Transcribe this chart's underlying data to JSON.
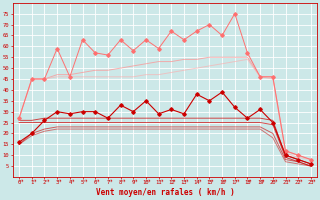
{
  "x": [
    0,
    1,
    2,
    3,
    4,
    5,
    6,
    7,
    8,
    9,
    10,
    11,
    12,
    13,
    14,
    15,
    16,
    17,
    18,
    19,
    20,
    21,
    22,
    23
  ],
  "series": [
    {
      "name": "rafales_max",
      "color": "#ff7070",
      "linewidth": 0.7,
      "marker": "D",
      "markersize": 1.8,
      "alpha": 1.0,
      "values": [
        27,
        45,
        45,
        59,
        46,
        63,
        57,
        56,
        63,
        58,
        63,
        59,
        67,
        63,
        67,
        70,
        65,
        75,
        57,
        46,
        46,
        12,
        10,
        8
      ]
    },
    {
      "name": "rafales_trend1",
      "color": "#ff9090",
      "linewidth": 0.7,
      "marker": null,
      "alpha": 0.7,
      "values": [
        27,
        45,
        45,
        47,
        47,
        48,
        49,
        49,
        50,
        51,
        52,
        53,
        53,
        54,
        54,
        55,
        55,
        55,
        55,
        46,
        46,
        12,
        10,
        8
      ]
    },
    {
      "name": "rafales_trend2",
      "color": "#ffaaaa",
      "linewidth": 0.7,
      "marker": null,
      "alpha": 0.6,
      "values": [
        27,
        45,
        45,
        46,
        46,
        46,
        46,
        46,
        46,
        46,
        47,
        47,
        48,
        49,
        50,
        51,
        52,
        53,
        54,
        46,
        45,
        11,
        9,
        8
      ]
    },
    {
      "name": "vent_max",
      "color": "#cc0000",
      "linewidth": 0.8,
      "marker": "D",
      "markersize": 1.8,
      "alpha": 1.0,
      "values": [
        16,
        20,
        26,
        30,
        29,
        30,
        30,
        27,
        33,
        30,
        35,
        29,
        31,
        29,
        38,
        35,
        39,
        32,
        27,
        31,
        25,
        10,
        8,
        6
      ]
    },
    {
      "name": "vent_moy_high",
      "color": "#cc0000",
      "linewidth": 0.7,
      "marker": null,
      "alpha": 0.7,
      "values": [
        26,
        26,
        27,
        27,
        27,
        27,
        27,
        27,
        27,
        27,
        27,
        27,
        27,
        27,
        27,
        27,
        27,
        27,
        27,
        27,
        26,
        10,
        8,
        6
      ]
    },
    {
      "name": "vent_moy_mid",
      "color": "#cc0000",
      "linewidth": 0.7,
      "marker": null,
      "alpha": 0.7,
      "values": [
        25,
        25,
        25,
        25,
        25,
        25,
        25,
        25,
        25,
        25,
        25,
        25,
        25,
        25,
        25,
        25,
        25,
        25,
        25,
        25,
        24,
        9,
        7,
        5
      ]
    },
    {
      "name": "vent_moy_low",
      "color": "#cc0000",
      "linewidth": 0.7,
      "marker": null,
      "alpha": 0.6,
      "values": [
        15,
        20,
        22,
        23,
        23,
        23,
        23,
        23,
        23,
        23,
        23,
        23,
        23,
        23,
        23,
        23,
        23,
        23,
        23,
        23,
        20,
        8,
        7,
        5
      ]
    },
    {
      "name": "vent_min",
      "color": "#cc0000",
      "linewidth": 0.7,
      "marker": null,
      "alpha": 0.5,
      "values": [
        15,
        19,
        21,
        22,
        22,
        22,
        22,
        22,
        22,
        22,
        22,
        22,
        22,
        22,
        22,
        22,
        22,
        22,
        22,
        22,
        18,
        7,
        6,
        5
      ]
    }
  ],
  "xlabel": "Vent moyen/en rafales ( km/h )",
  "xlim": [
    -0.5,
    23.5
  ],
  "ylim": [
    0,
    80
  ],
  "yticks": [
    5,
    10,
    15,
    20,
    25,
    30,
    35,
    40,
    45,
    50,
    55,
    60,
    65,
    70,
    75
  ],
  "xticks": [
    0,
    1,
    2,
    3,
    4,
    5,
    6,
    7,
    8,
    9,
    10,
    11,
    12,
    13,
    14,
    15,
    16,
    17,
    18,
    19,
    20,
    21,
    22,
    23
  ],
  "bg_color": "#cce8e8",
  "grid_color": "#ffffff",
  "text_color": "#cc0000",
  "arrow_symbol": "↗"
}
